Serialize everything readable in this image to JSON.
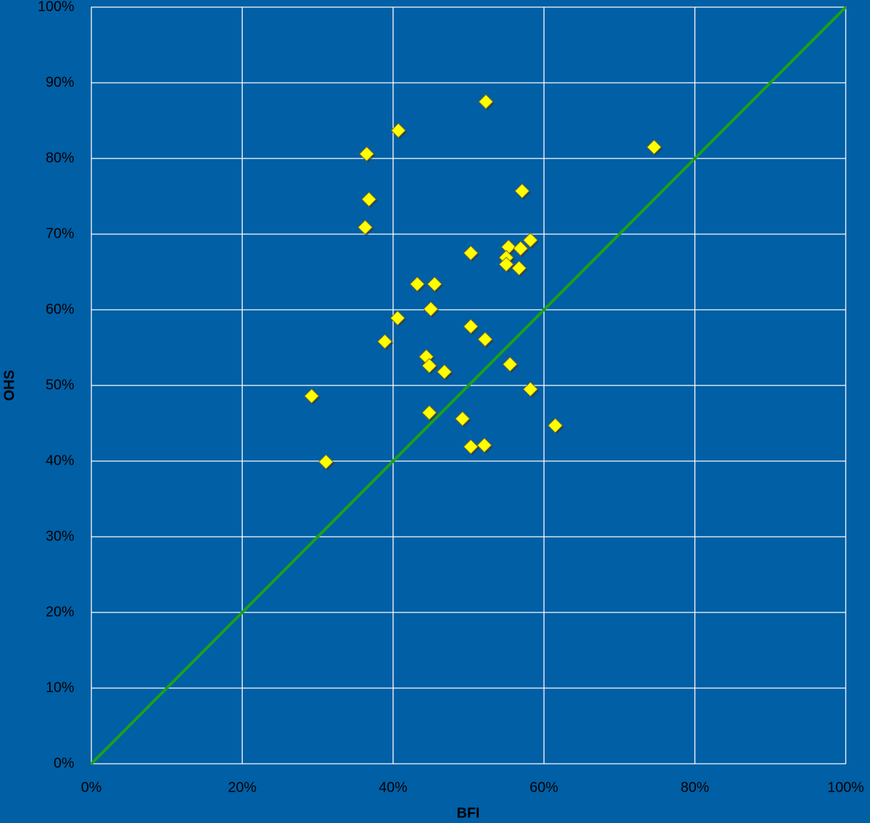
{
  "chart_data": {
    "type": "scatter",
    "x_label": "BFI",
    "y_label": "OHS",
    "xlim": [
      0,
      100
    ],
    "ylim": [
      0,
      100
    ],
    "xticks": [
      {
        "value": 0,
        "label": "0%"
      },
      {
        "value": 20,
        "label": "20%"
      },
      {
        "value": 40,
        "label": "40%"
      },
      {
        "value": 60,
        "label": "60%"
      },
      {
        "value": 80,
        "label": "80%"
      },
      {
        "value": 100,
        "label": "100%"
      }
    ],
    "yticks": [
      {
        "value": 0,
        "label": "0%"
      },
      {
        "value": 10,
        "label": "10%"
      },
      {
        "value": 20,
        "label": "20%"
      },
      {
        "value": 30,
        "label": "30%"
      },
      {
        "value": 40,
        "label": "40%"
      },
      {
        "value": 50,
        "label": "50%"
      },
      {
        "value": 60,
        "label": "60%"
      },
      {
        "value": 70,
        "label": "70%"
      },
      {
        "value": 80,
        "label": "80%"
      },
      {
        "value": 90,
        "label": "90%"
      },
      {
        "value": 100,
        "label": "100%"
      }
    ],
    "grid": true,
    "background": "#005fa5",
    "grid_color": "#ffffff",
    "series": [
      {
        "color": "#ffff00",
        "x": [
          52.3,
          40.7,
          36.5,
          74.6,
          36.8,
          57.1,
          36.3,
          50.3,
          55.3,
          56.9,
          58.2,
          55.0,
          55.0,
          56.7,
          43.2,
          45.5,
          45.0,
          40.6,
          50.3,
          52.2,
          38.9,
          44.4,
          44.8,
          46.8,
          55.5,
          58.2,
          29.2,
          44.8,
          49.2,
          61.5,
          50.3,
          52.1,
          31.1
        ],
        "values": [
          87.5,
          83.7,
          80.6,
          81.5,
          74.6,
          75.7,
          70.9,
          67.5,
          68.3,
          68.1,
          69.2,
          66.9,
          66.0,
          65.5,
          63.4,
          63.4,
          60.1,
          58.9,
          57.8,
          56.1,
          55.8,
          53.8,
          52.6,
          51.8,
          52.8,
          49.5,
          48.6,
          46.4,
          45.6,
          44.7,
          41.9,
          42.1,
          39.9
        ]
      },
      {
        "type": "line",
        "color": "#1aa01a",
        "x": [
          0,
          100
        ],
        "values": [
          0,
          100
        ]
      }
    ]
  }
}
